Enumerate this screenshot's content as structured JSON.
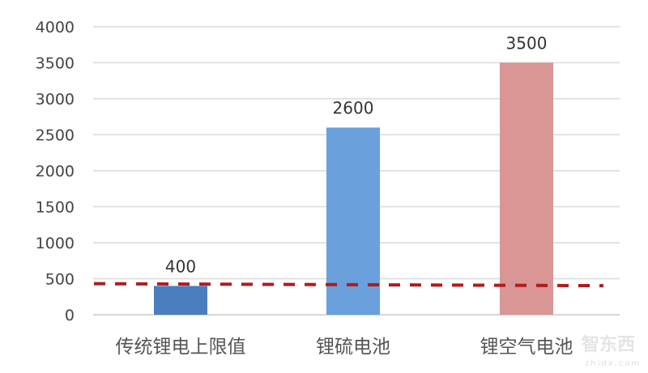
{
  "chart_data": {
    "type": "bar",
    "title": "",
    "xlabel": "",
    "ylabel": "",
    "categories": [
      "传统锂电上限值",
      "锂硫电池",
      "锂空气电池"
    ],
    "values": [
      400,
      2600,
      3500
    ],
    "data_labels": [
      "400",
      "2600",
      "3500"
    ],
    "bar_colors": [
      "#4a7ebf",
      "#6aa0dc",
      "#d99694"
    ],
    "ylim": [
      0,
      4000
    ],
    "yticks": [
      "0",
      "500",
      "1000",
      "1500",
      "2000",
      "2500",
      "3000",
      "3500",
      "4000"
    ],
    "grid": true,
    "legend": "none",
    "reference_line": {
      "value": 420,
      "style": "dashed",
      "color": "#b01c1c"
    }
  },
  "watermark": {
    "text": "智东西",
    "subtext": "zhidx.com"
  }
}
